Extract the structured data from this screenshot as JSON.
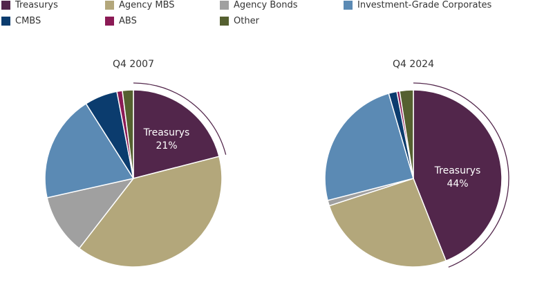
{
  "chart_data": [
    {
      "type": "pie",
      "title": "Q4 2007",
      "categories": [
        "Treasurys",
        "Agency MBS",
        "Agency Bonds",
        "Investment-Grade Corporates",
        "CMBS",
        "ABS",
        "Other"
      ],
      "values": [
        21,
        39.5,
        11,
        19.5,
        6,
        1,
        2
      ],
      "highlight": {
        "category": "Treasurys",
        "label": "Treasurys",
        "value_label": "21%"
      }
    },
    {
      "type": "pie",
      "title": "Q4 2024",
      "categories": [
        "Treasurys",
        "Agency MBS",
        "Agency Bonds",
        "Investment-Grade Corporates",
        "CMBS",
        "ABS",
        "Other"
      ],
      "values": [
        44,
        26,
        1,
        24.5,
        1.5,
        0.5,
        2.5
      ],
      "highlight": {
        "category": "Treasurys",
        "label": "Treasurys",
        "value_label": "44%"
      }
    }
  ],
  "legend": {
    "placement": "top-left",
    "items": [
      {
        "label": "Treasurys",
        "color": "#52264b"
      },
      {
        "label": "Agency MBS",
        "color": "#b3a77b"
      },
      {
        "label": "Agency Bonds",
        "color": "#a0a0a0"
      },
      {
        "label": "Investment-Grade Corporates",
        "color": "#5b8ab4"
      },
      {
        "label": "CMBS",
        "color": "#0b3c6e"
      },
      {
        "label": "ABS",
        "color": "#8b1a55"
      },
      {
        "label": "Other",
        "color": "#556030"
      }
    ]
  }
}
